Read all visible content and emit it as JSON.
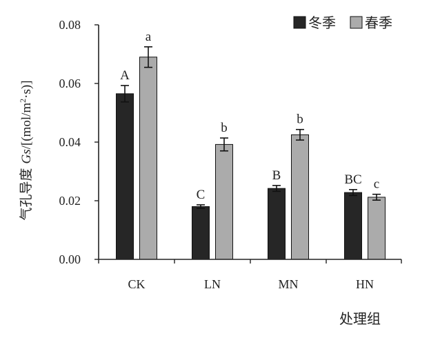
{
  "chart_data": {
    "type": "bar",
    "categories": [
      "CK",
      "LN",
      "MN",
      "HN"
    ],
    "series": [
      {
        "name": "冬季",
        "color": "#262626",
        "values": [
          0.0565,
          0.018,
          0.0242,
          0.0228
        ],
        "errors": [
          0.0028,
          0.0006,
          0.001,
          0.001
        ],
        "labels": [
          "A",
          "C",
          "B",
          "BC"
        ]
      },
      {
        "name": "春季",
        "color": "#ababab",
        "values": [
          0.069,
          0.0392,
          0.0425,
          0.0212
        ],
        "errors": [
          0.0035,
          0.0022,
          0.0018,
          0.001
        ],
        "labels": [
          "a",
          "b",
          "b",
          "c"
        ]
      }
    ],
    "xlabel": "处理组",
    "ylabel": "气孔导度 Gs/[(mol/m²·s)]",
    "ylim": [
      0,
      0.08
    ],
    "yticks": [
      "0.00",
      "0.02",
      "0.04",
      "0.06",
      "0.08"
    ],
    "ytick_values": [
      0,
      0.02,
      0.04,
      0.06,
      0.08
    ],
    "grid": false,
    "legend_position": "top-right"
  }
}
